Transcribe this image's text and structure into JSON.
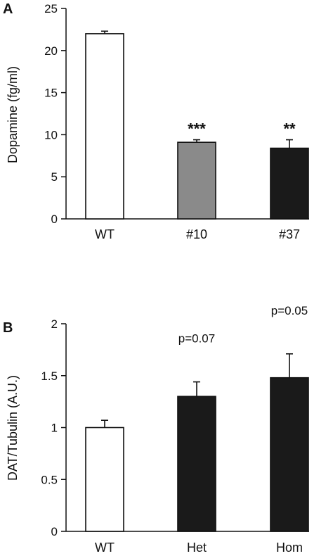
{
  "chart_data": [
    {
      "panel_label": "A",
      "type": "bar",
      "categories": [
        "WT",
        "#10",
        "#37"
      ],
      "values": [
        22.0,
        9.1,
        8.4
      ],
      "errors": [
        0.3,
        0.3,
        1.0
      ],
      "bar_colors": [
        "#ffffff",
        "#8a8a8a",
        "#1a1a1a"
      ],
      "annotations": [
        "",
        "***",
        "**"
      ],
      "title": "",
      "xlabel": "",
      "ylabel": "Dopamine (fg/ml)",
      "ylim": [
        0,
        25
      ],
      "yticks": [
        0,
        5,
        10,
        15,
        20,
        25
      ],
      "ytick_labels": [
        "0",
        "5",
        "10",
        "15",
        "20",
        "25"
      ],
      "grid": false
    },
    {
      "panel_label": "B",
      "type": "bar",
      "categories": [
        "WT",
        "Het",
        "Hom"
      ],
      "values": [
        1.0,
        1.3,
        1.48
      ],
      "errors": [
        0.07,
        0.14,
        0.23
      ],
      "bar_colors": [
        "#ffffff",
        "#1a1a1a",
        "#1a1a1a"
      ],
      "annotations": [
        "",
        "p=0.07",
        "p=0.05"
      ],
      "title": "",
      "xlabel": "",
      "ylabel": "DAT/Tubulin (A.U.)",
      "ylim": [
        0,
        2
      ],
      "yticks": [
        0,
        0.5,
        1,
        1.5,
        2
      ],
      "ytick_labels": [
        "0",
        "0.5",
        "1",
        "1.5",
        "2"
      ],
      "grid": false
    }
  ]
}
